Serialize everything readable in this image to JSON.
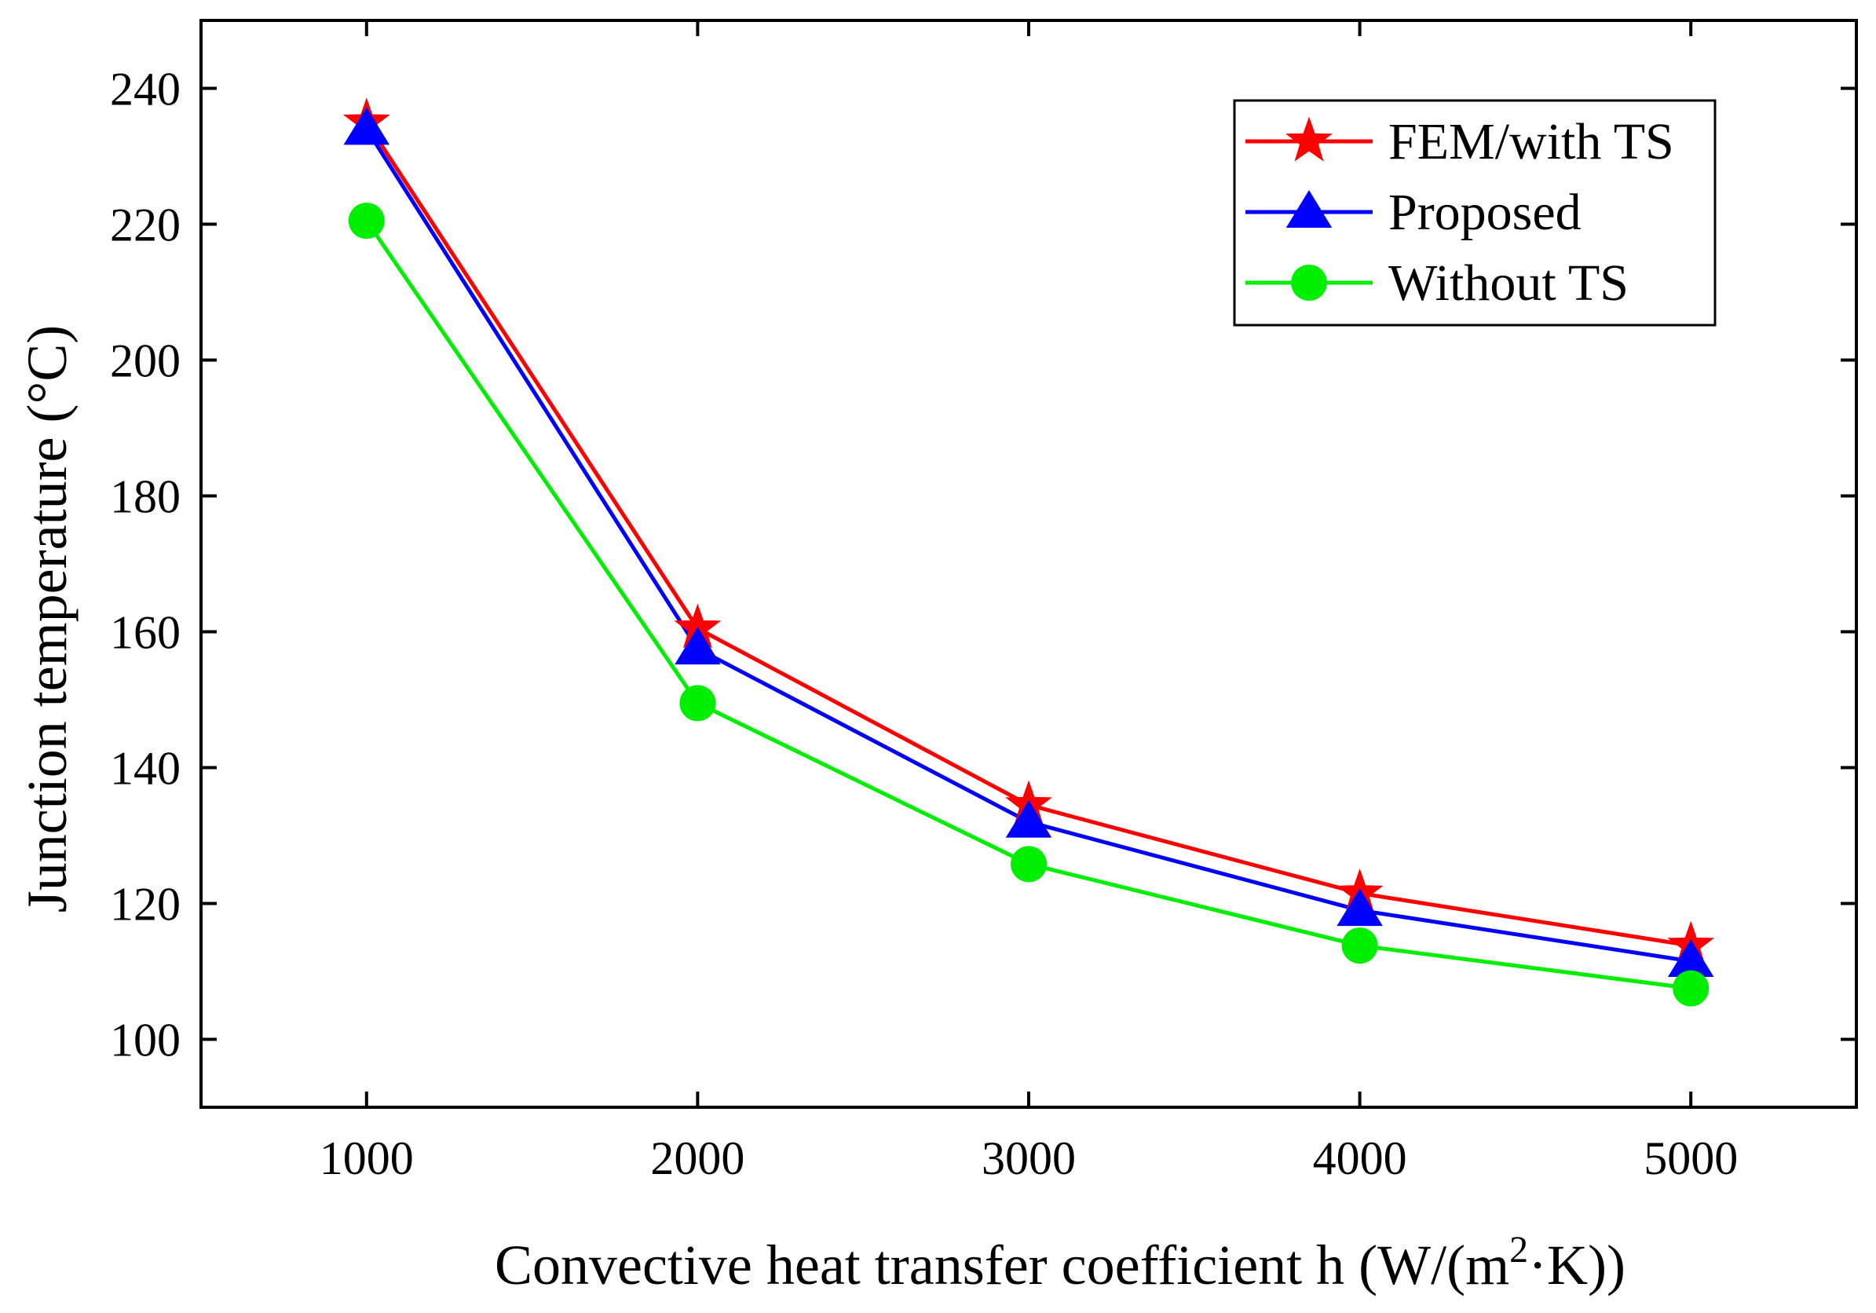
{
  "chart_data": {
    "type": "line",
    "title": "",
    "xlabel": "Convective heat transfer coefficient h (W/(m²·K))",
    "xlabel_parts": {
      "before": "Convective heat transfer coefficient h (W/(m",
      "superscript": "2",
      "after": "·K))"
    },
    "ylabel": "Junction temperature (°C)",
    "xlim": [
      500,
      5500
    ],
    "ylim": [
      90,
      250
    ],
    "x": [
      1000,
      2000,
      3000,
      4000,
      5000
    ],
    "xticks": [
      "1000",
      "2000",
      "3000",
      "4000",
      "5000"
    ],
    "yticks": [
      "100",
      "120",
      "140",
      "160",
      "180",
      "200",
      "220",
      "240"
    ],
    "ytick_values": [
      100,
      120,
      140,
      160,
      180,
      200,
      220,
      240
    ],
    "grid": false,
    "legend_position": "top-right",
    "series": [
      {
        "name": "FEM/with TS",
        "color": "#ff0000",
        "marker": "star",
        "values": [
          235,
          160.5,
          134.5,
          121.5,
          113.8
        ]
      },
      {
        "name": "Proposed",
        "color": "#0000ff",
        "marker": "triangle",
        "values": [
          234,
          157.5,
          132,
          119,
          111.5
        ]
      },
      {
        "name": "Without TS",
        "color": "#00ee00",
        "marker": "circle",
        "values": [
          220.5,
          149.5,
          125.8,
          113.8,
          107.5
        ]
      }
    ]
  }
}
